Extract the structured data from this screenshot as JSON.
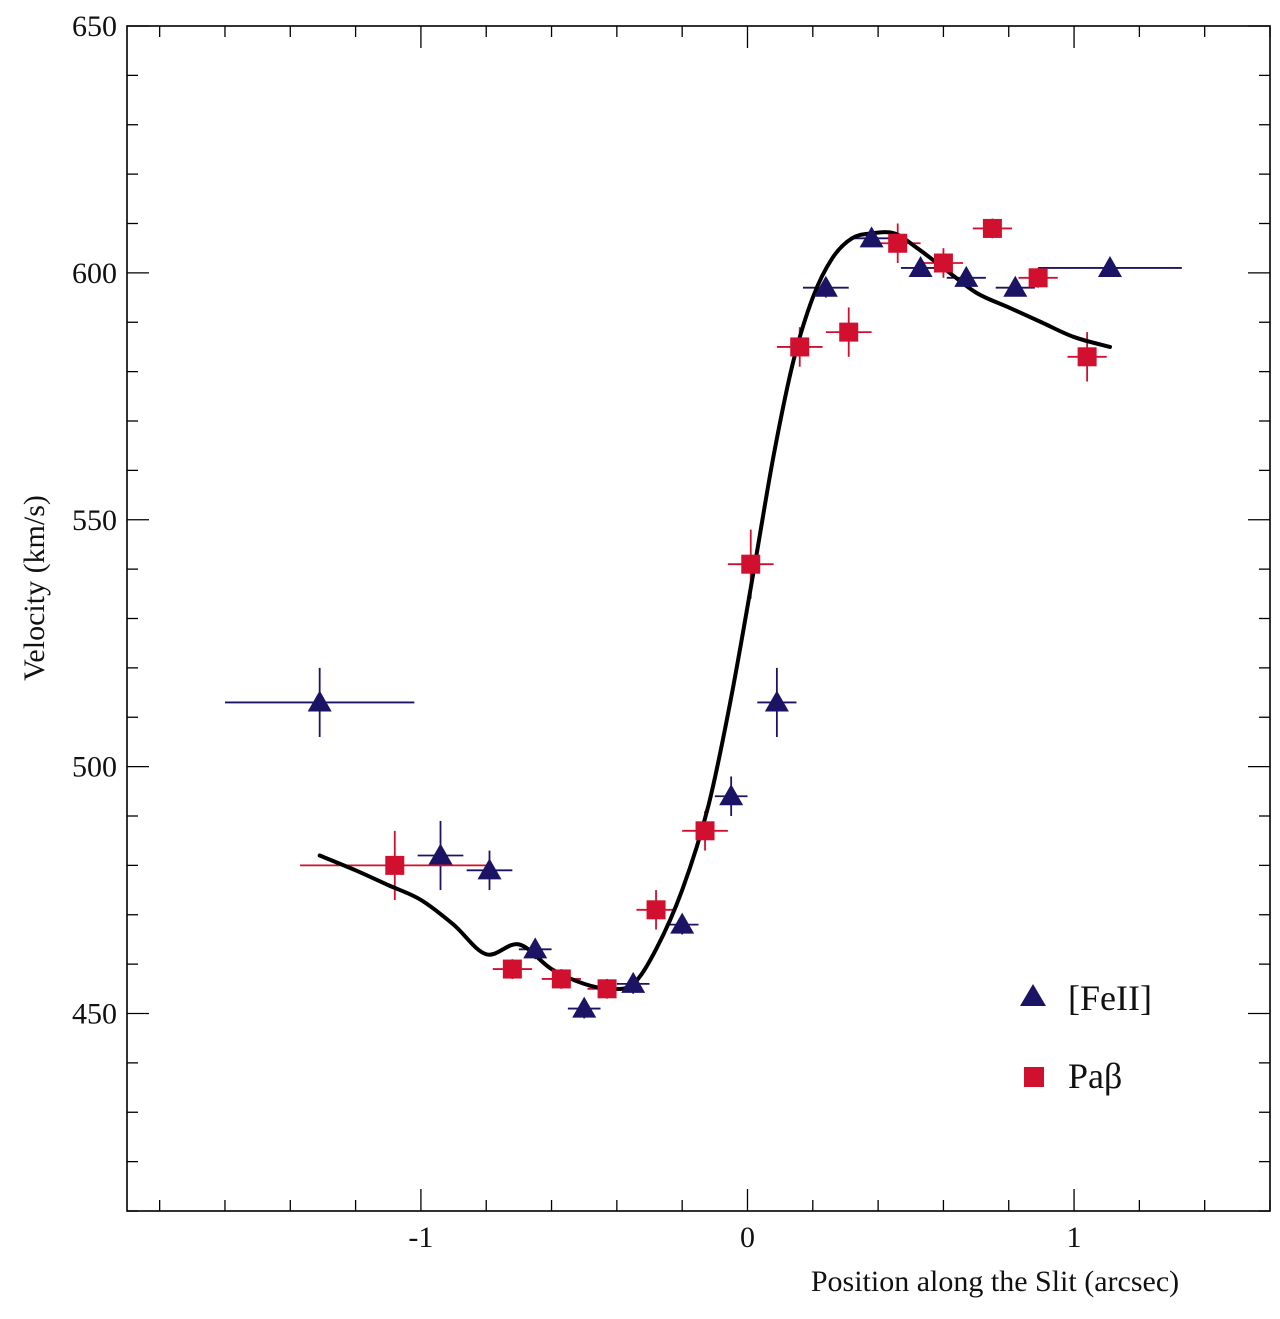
{
  "chart_data": {
    "type": "scatter",
    "title": "",
    "xlabel": "Position along the Slit (arcsec)",
    "ylabel": "Velocity (km/s)",
    "xlim": [
      -1.9,
      1.6
    ],
    "ylim": [
      410,
      650
    ],
    "x_ticks": [
      {
        "value": -1,
        "label": "-1"
      },
      {
        "value": 0,
        "label": "0"
      },
      {
        "value": 1,
        "label": "1"
      }
    ],
    "y_ticks": [
      {
        "value": 450,
        "label": "450"
      },
      {
        "value": 500,
        "label": "500"
      },
      {
        "value": 550,
        "label": "550"
      },
      {
        "value": 600,
        "label": "600"
      },
      {
        "value": 650,
        "label": "650"
      }
    ],
    "legend": [
      {
        "name": "[FeII]",
        "marker": "triangle",
        "color": "#1b1464"
      },
      {
        "name": "Paβ",
        "marker": "square",
        "color": "#d0102e"
      }
    ],
    "legend_position": "bottom-right",
    "series": [
      {
        "name": "[FeII]",
        "marker": "triangle",
        "color": "#1b1464",
        "points": [
          {
            "x": -1.31,
            "y": 513,
            "xerr": 0.29,
            "yerr": 7
          },
          {
            "x": -0.94,
            "y": 482,
            "xerr": 0.07,
            "yerr": 7
          },
          {
            "x": -0.79,
            "y": 479,
            "xerr": 0.07,
            "yerr": 4
          },
          {
            "x": -0.65,
            "y": 463,
            "xerr": 0.05,
            "yerr": 2
          },
          {
            "x": -0.5,
            "y": 451,
            "xerr": 0.05,
            "yerr": 2
          },
          {
            "x": -0.35,
            "y": 456,
            "xerr": 0.05,
            "yerr": 2
          },
          {
            "x": -0.2,
            "y": 468,
            "xerr": 0.05,
            "yerr": 2
          },
          {
            "x": -0.05,
            "y": 494,
            "xerr": 0.05,
            "yerr": 4
          },
          {
            "x": 0.09,
            "y": 513,
            "xerr": 0.06,
            "yerr": 7
          },
          {
            "x": 0.24,
            "y": 597,
            "xerr": 0.07,
            "yerr": 2
          },
          {
            "x": 0.38,
            "y": 607,
            "xerr": 0.06,
            "yerr": 1.5
          },
          {
            "x": 0.53,
            "y": 601,
            "xerr": 0.06,
            "yerr": 1.5
          },
          {
            "x": 0.67,
            "y": 599,
            "xerr": 0.06,
            "yerr": 1.5
          },
          {
            "x": 0.82,
            "y": 597,
            "xerr": 0.06,
            "yerr": 1.5
          },
          {
            "x": 1.11,
            "y": 601,
            "xerr": 0.22,
            "yerr": 1.5
          }
        ]
      },
      {
        "name": "Paβ",
        "marker": "square",
        "color": "#d0102e",
        "points": [
          {
            "x": -1.08,
            "y": 480,
            "xerr": 0.29,
            "yerr": 7
          },
          {
            "x": -0.72,
            "y": 459,
            "xerr": 0.06,
            "yerr": 2
          },
          {
            "x": -0.57,
            "y": 457,
            "xerr": 0.06,
            "yerr": 2
          },
          {
            "x": -0.43,
            "y": 455,
            "xerr": 0.06,
            "yerr": 2
          },
          {
            "x": -0.28,
            "y": 471,
            "xerr": 0.06,
            "yerr": 4
          },
          {
            "x": -0.13,
            "y": 487,
            "xerr": 0.07,
            "yerr": 4
          },
          {
            "x": 0.01,
            "y": 541,
            "xerr": 0.07,
            "yerr": 7
          },
          {
            "x": 0.16,
            "y": 585,
            "xerr": 0.07,
            "yerr": 4
          },
          {
            "x": 0.31,
            "y": 588,
            "xerr": 0.07,
            "yerr": 5
          },
          {
            "x": 0.46,
            "y": 606,
            "xerr": 0.07,
            "yerr": 4
          },
          {
            "x": 0.6,
            "y": 602,
            "xerr": 0.06,
            "yerr": 3
          },
          {
            "x": 0.75,
            "y": 609,
            "xerr": 0.06,
            "yerr": 2
          },
          {
            "x": 0.89,
            "y": 599,
            "xerr": 0.06,
            "yerr": 2
          },
          {
            "x": 1.04,
            "y": 583,
            "xerr": 0.06,
            "yerr": 5
          }
        ]
      }
    ],
    "model_curve": {
      "name": "model",
      "color": "#000000",
      "x": [
        -1.31,
        -1.2,
        -1.1,
        -1.0,
        -0.9,
        -0.8,
        -0.7,
        -0.6,
        -0.5,
        -0.42,
        -0.35,
        -0.28,
        -0.2,
        -0.12,
        -0.05,
        0.02,
        0.08,
        0.14,
        0.2,
        0.26,
        0.32,
        0.38,
        0.45,
        0.52,
        0.6,
        0.7,
        0.8,
        0.9,
        1.0,
        1.11
      ],
      "y": [
        482,
        479,
        476,
        473,
        468,
        462,
        464,
        459,
        456,
        455,
        456,
        463,
        475,
        492,
        514,
        540,
        563,
        582,
        595,
        603,
        607,
        608,
        608,
        605,
        601,
        596,
        593,
        590,
        587,
        585
      ]
    }
  }
}
